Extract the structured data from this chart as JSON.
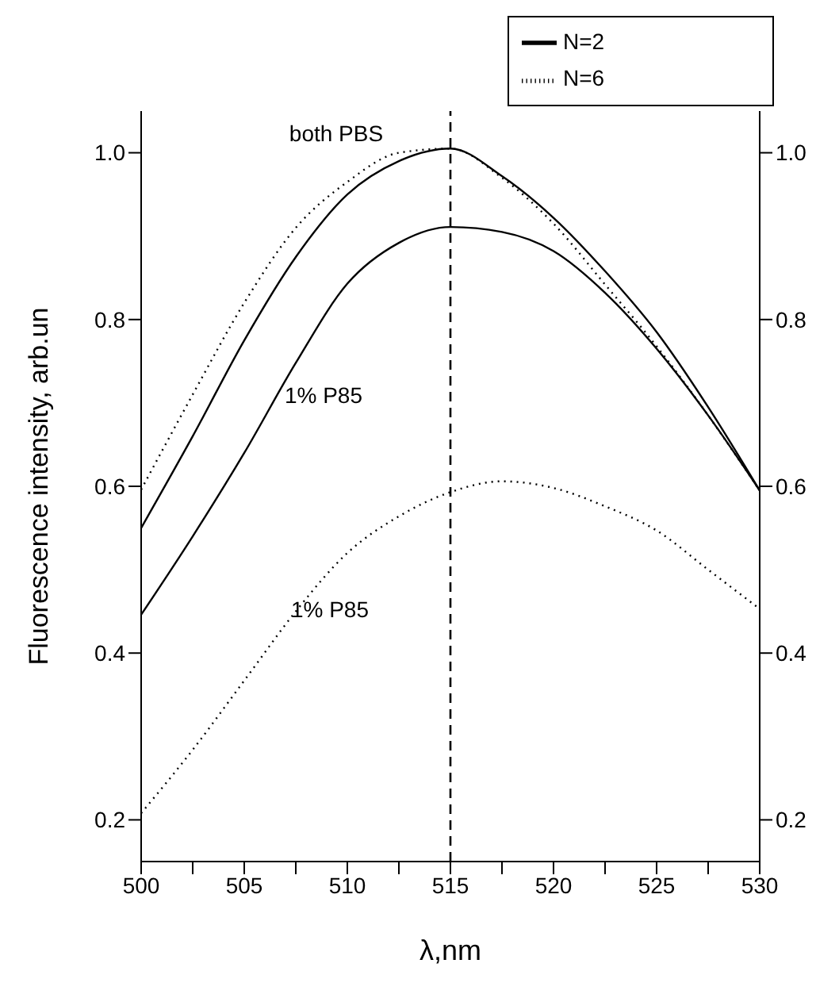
{
  "chart_data": {
    "type": "line",
    "xlabel": "λ,nm",
    "ylabel": "Fluorescence intensity, arb.un",
    "x": [
      500,
      502.5,
      505,
      507.5,
      510,
      512.5,
      515,
      517.5,
      520,
      522.5,
      525,
      527.5,
      530
    ],
    "series": [
      {
        "name": "N=2",
        "color": "#000000",
        "line_style": "solid",
        "values": [
          0.55,
          0.66,
          0.775,
          0.875,
          0.95,
          0.99,
          1.005,
          0.972,
          0.922,
          0.858,
          0.785,
          0.695,
          0.595
        ]
      },
      {
        "name": "N=6",
        "color": "#000000",
        "line_style": "dotted",
        "values": [
          0.596,
          0.71,
          0.82,
          0.91,
          0.965,
          1.0,
          1.005,
          0.97,
          0.915,
          0.842,
          0.768,
          0.685,
          0.595
        ]
      },
      {
        "color": "#000000",
        "line_style": "solid",
        "values": [
          0.446,
          0.54,
          0.64,
          0.748,
          0.843,
          0.892,
          0.911,
          0.905,
          0.882,
          0.832,
          0.765,
          0.685,
          0.595
        ]
      },
      {
        "color": "#000000",
        "line_style": "dotted",
        "values": [
          0.208,
          0.284,
          0.367,
          0.45,
          0.52,
          0.564,
          0.593,
          0.606,
          0.598,
          0.576,
          0.547,
          0.5,
          0.453
        ]
      }
    ],
    "xlim": [
      500,
      530
    ],
    "xticks": [
      500,
      {
        "value": 502.5,
        "label": null
      },
      505,
      {
        "value": 507.5,
        "label": null
      },
      510,
      {
        "value": 512.5,
        "label": null
      },
      515,
      {
        "value": 517.5,
        "label": null
      },
      520,
      {
        "value": 522.5,
        "label": null
      },
      525,
      {
        "value": 527.5,
        "label": null
      },
      530
    ],
    "ylim": [
      0.15,
      1.05
    ],
    "yticks": [
      {
        "value": 0.2,
        "label": "0.2"
      },
      {
        "value": 0.4,
        "label": "0.4"
      },
      {
        "value": 0.6,
        "label": "0.6"
      },
      {
        "value": 0.8,
        "label": "0.8"
      },
      {
        "value": 1.0,
        "label": "1.0"
      }
    ],
    "y2lim": [
      0.15,
      1.05
    ],
    "y2ticks": [
      {
        "value": 0.2,
        "label": "0.2"
      },
      {
        "value": 0.4,
        "label": "0.4"
      },
      {
        "value": 0.6,
        "label": "0.6"
      },
      {
        "value": 0.8,
        "label": "0.8"
      },
      {
        "value": 1.0,
        "label": "1.0"
      }
    ],
    "ref_lines": [
      {
        "axis": "x",
        "value": 515,
        "line_style": "dashed",
        "color": "#000000"
      }
    ],
    "annotations": [
      "both PBS",
      "1% P85",
      "1% P85"
    ],
    "legend": "top right",
    "grid": false,
    "marker": "none"
  }
}
